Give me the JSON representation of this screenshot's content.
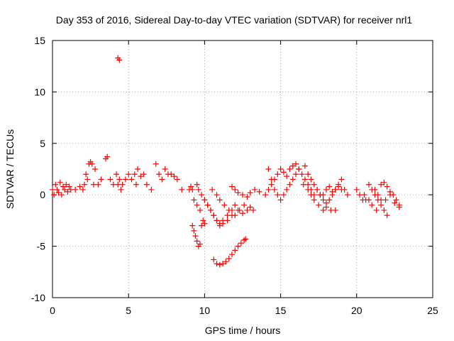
{
  "chart_data": {
    "type": "scatter",
    "title": "Day 353 of 2016, Sidereal Day-to-day VTEC variation (SDTVAR) for receiver nrl1",
    "xlabel": "GPS time / hours",
    "ylabel": "SDTVAR / TECUs",
    "xlim": [
      0,
      25
    ],
    "ylim": [
      -10,
      15
    ],
    "xticks": [
      "0",
      "5",
      "10",
      "15",
      "20",
      "25"
    ],
    "yticks": [
      "-10",
      "-5",
      "0",
      "5",
      "10",
      "15"
    ],
    "grid": true,
    "marker": "plus",
    "color": "#ff0000",
    "series": [
      {
        "name": "SDTVAR",
        "x": [
          0.0,
          0.1,
          0.2,
          0.3,
          0.4,
          0.5,
          0.6,
          0.7,
          0.8,
          0.9,
          1.0,
          1.1,
          1.2,
          1.5,
          1.8,
          2.0,
          2.1,
          2.2,
          2.3,
          2.4,
          2.5,
          2.6,
          2.7,
          2.8,
          3.0,
          3.2,
          3.5,
          3.6,
          3.8,
          4.0,
          4.2,
          4.3,
          4.4,
          4.5,
          4.6,
          4.8,
          5.0,
          5.2,
          5.4,
          5.5,
          5.6,
          5.8,
          6.0,
          6.2,
          6.5,
          6.8,
          7.0,
          7.2,
          7.4,
          7.6,
          7.8,
          8.0,
          8.2,
          8.5,
          9.0,
          9.1,
          9.2,
          9.3,
          9.5,
          9.7,
          9.5,
          9.6,
          9.8,
          10.0,
          10.2,
          10.4,
          10.6,
          10.8,
          11.0,
          11.2,
          11.5,
          11.8,
          12.0,
          12.2,
          12.5,
          12.8,
          13.0,
          13.2,
          10.0,
          10.2,
          10.4,
          10.6,
          10.8,
          11.0,
          11.2,
          11.5,
          11.8,
          10.5,
          10.8,
          11.0,
          11.3,
          11.6,
          12.0,
          12.3,
          12.6,
          9.2,
          9.3,
          9.4,
          9.5,
          9.6,
          9.7,
          9.8,
          9.9,
          10.0,
          10.6,
          10.8,
          11.0,
          11.2,
          11.4,
          11.6,
          11.8,
          12.0,
          12.2,
          12.4,
          12.6,
          12.7,
          11.8,
          12.0,
          12.2,
          12.5,
          12.8,
          13.0,
          13.3,
          13.6,
          14.0,
          14.2,
          14.4,
          14.6,
          14.8,
          15.0,
          15.2,
          15.4,
          15.6,
          15.8,
          16.0,
          16.2,
          16.4,
          16.6,
          16.8,
          17.0,
          17.2,
          17.4,
          17.6,
          17.8,
          18.0,
          18.2,
          18.4,
          18.6,
          18.8,
          19.0,
          14.2,
          14.4,
          14.6,
          14.8,
          15.0,
          15.2,
          15.4,
          15.6,
          15.8,
          16.0,
          16.2,
          16.5,
          16.8,
          17.0,
          17.2,
          17.5,
          17.8,
          18.0,
          18.3,
          18.6,
          16.6,
          16.8,
          17.0,
          17.2,
          17.4,
          17.6,
          17.8,
          18.0,
          18.2,
          18.4,
          18.6,
          18.8,
          19.0,
          19.2,
          19.4,
          20.0,
          20.2,
          20.4,
          20.6,
          20.8,
          21.0,
          21.2,
          21.4,
          21.6,
          21.8,
          22.0,
          22.2,
          22.4,
          22.6,
          22.8,
          20.5,
          20.8,
          21.0,
          21.3,
          21.6,
          21.9,
          22.2,
          22.5,
          22.8,
          21.2,
          21.4,
          21.6,
          21.8,
          22.0,
          4.3,
          4.4
        ],
        "y": [
          0.5,
          0.0,
          1.0,
          0.5,
          0.2,
          1.2,
          0.0,
          0.8,
          0.5,
          1.0,
          0.3,
          0.8,
          0.5,
          0.5,
          0.8,
          0.5,
          1.0,
          2.0,
          1.5,
          3.0,
          3.2,
          3.0,
          1.0,
          2.5,
          1.0,
          1.5,
          3.5,
          3.7,
          1.5,
          1.0,
          2.0,
          1.0,
          1.5,
          0.5,
          1.0,
          1.5,
          2.0,
          1.5,
          2.0,
          1.0,
          2.5,
          1.8,
          2.0,
          1.0,
          0.5,
          3.0,
          2.0,
          1.5,
          2.5,
          2.0,
          2.0,
          1.8,
          1.5,
          0.5,
          0.5,
          0.8,
          0.5,
          -0.5,
          -1.0,
          -1.5,
          1.0,
          0.5,
          0.0,
          -0.5,
          -1.0,
          -1.5,
          -2.0,
          -2.5,
          -2.8,
          -2.5,
          -2.0,
          -1.5,
          -1.0,
          -1.5,
          -1.8,
          -1.5,
          -1.2,
          -1.5,
          -0.5,
          -1.0,
          -1.5,
          -2.0,
          -2.5,
          -3.0,
          -2.8,
          -2.5,
          -2.0,
          0.5,
          0.0,
          -0.5,
          -1.0,
          -1.5,
          -2.0,
          -1.5,
          -1.0,
          -3.0,
          -3.5,
          -4.0,
          -4.5,
          -5.0,
          -4.8,
          -3.0,
          -2.5,
          -2.8,
          -6.3,
          -6.7,
          -6.8,
          -6.7,
          -6.5,
          -6.2,
          -5.8,
          -5.4,
          -5.0,
          -4.7,
          -4.4,
          -4.3,
          0.8,
          0.5,
          0.2,
          0.0,
          -0.2,
          0.2,
          0.5,
          0.3,
          0.0,
          0.5,
          1.0,
          1.5,
          2.0,
          2.5,
          2.2,
          1.8,
          2.5,
          2.8,
          3.0,
          2.5,
          2.0,
          1.5,
          1.0,
          0.5,
          0.0,
          0.5,
          0.0,
          -0.5,
          -0.8,
          -0.5,
          0.0,
          0.5,
          1.0,
          0.5,
          2.5,
          1.5,
          0.5,
          0.0,
          -0.5,
          0.0,
          0.5,
          1.0,
          1.5,
          2.0,
          2.5,
          1.0,
          0.5,
          0.0,
          -0.5,
          -1.0,
          -1.5,
          -1.2,
          -1.5,
          -1.5,
          2.8,
          2.0,
          1.5,
          1.0,
          0.5,
          0.0,
          0.0,
          0.5,
          0.8,
          0.3,
          0.5,
          0.8,
          1.5,
          0.5,
          0.0,
          0.5,
          0.0,
          -0.5,
          -0.5,
          1.0,
          0.5,
          0.0,
          -0.5,
          1.0,
          1.2,
          0.8,
          0.3,
          0.0,
          -0.5,
          -1.0,
          0.0,
          -0.5,
          -1.0,
          -1.5,
          -1.0,
          -0.5,
          0.0,
          -0.8,
          -1.2,
          0.5,
          0.0,
          -0.5,
          -1.5,
          -2.0,
          13.3,
          13.1
        ]
      }
    ]
  }
}
